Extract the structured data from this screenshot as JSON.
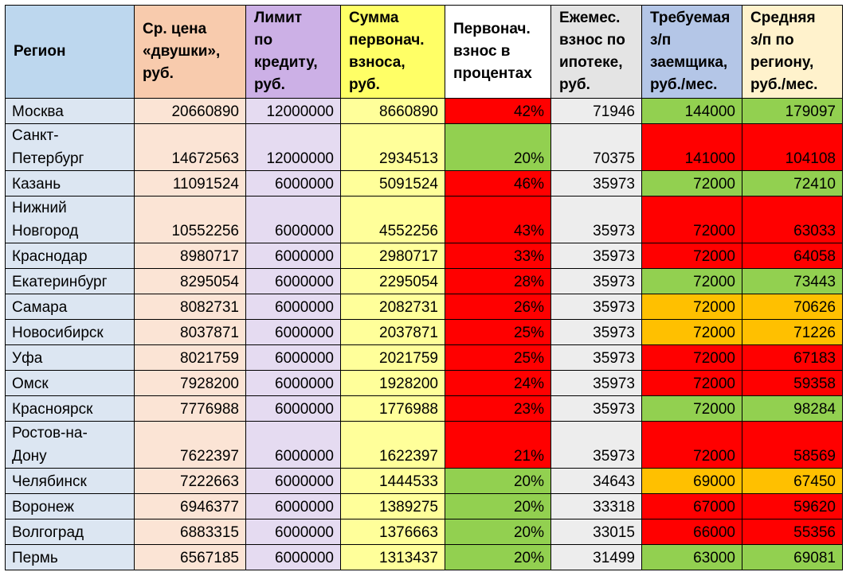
{
  "headers": {
    "region": "Регион",
    "price": "Ср. цена\n«двушки»,\nруб.",
    "limit": "Лимит\nпо\nкредиту,\nруб.",
    "sum": "Сумма\nпервонач.\nвзноса,\nруб.",
    "pct": "Первонач.\nвзнос в\nпроцентах",
    "month": "Ежемес.\nвзнос по\nипотеке,\nруб.",
    "req": "Требуемая\nз/п\nзаемщика,\nруб./мес.",
    "avg": "Средняя\nз/п по\nрегиону,\nруб./мес."
  },
  "colors": {
    "red": "#ff0000",
    "green": "#92d050",
    "orange": "#ffc000"
  },
  "rows": [
    {
      "region": "Москва",
      "price": "20660890",
      "limit": "12000000",
      "sum": "8660890",
      "pct": "42%",
      "month": "71946",
      "req": "144000",
      "avg": "179097",
      "pct_color": "red",
      "sal_color": "green"
    },
    {
      "region": "Санкт-\nПетербург",
      "price": "14672563",
      "limit": "12000000",
      "sum": "2934513",
      "pct": "20%",
      "month": "70375",
      "req": "141000",
      "avg": "104108",
      "pct_color": "green",
      "sal_color": "red"
    },
    {
      "region": "Казань",
      "price": "11091524",
      "limit": "6000000",
      "sum": "5091524",
      "pct": "46%",
      "month": "35973",
      "req": "72000",
      "avg": "72410",
      "pct_color": "red",
      "sal_color": "green"
    },
    {
      "region": "Нижний\nНовгород",
      "price": "10552256",
      "limit": "6000000",
      "sum": "4552256",
      "pct": "43%",
      "month": "35973",
      "req": "72000",
      "avg": "63033",
      "pct_color": "red",
      "sal_color": "red"
    },
    {
      "region": "Краснодар",
      "price": "8980717",
      "limit": "6000000",
      "sum": "2980717",
      "pct": "33%",
      "month": "35973",
      "req": "72000",
      "avg": "64058",
      "pct_color": "red",
      "sal_color": "red"
    },
    {
      "region": "Екатеринбург",
      "price": "8295054",
      "limit": "6000000",
      "sum": "2295054",
      "pct": "28%",
      "month": "35973",
      "req": "72000",
      "avg": "73443",
      "pct_color": "red",
      "sal_color": "green"
    },
    {
      "region": "Самара",
      "price": "8082731",
      "limit": "6000000",
      "sum": "2082731",
      "pct": "26%",
      "month": "35973",
      "req": "72000",
      "avg": "70626",
      "pct_color": "red",
      "sal_color": "orange"
    },
    {
      "region": "Новосибирск",
      "price": "8037871",
      "limit": "6000000",
      "sum": "2037871",
      "pct": "25%",
      "month": "35973",
      "req": "72000",
      "avg": "71226",
      "pct_color": "red",
      "sal_color": "orange"
    },
    {
      "region": "Уфа",
      "price": "8021759",
      "limit": "6000000",
      "sum": "2021759",
      "pct": "25%",
      "month": "35973",
      "req": "72000",
      "avg": "67183",
      "pct_color": "red",
      "sal_color": "red"
    },
    {
      "region": "Омск",
      "price": "7928200",
      "limit": "6000000",
      "sum": "1928200",
      "pct": "24%",
      "month": "35973",
      "req": "72000",
      "avg": "59358",
      "pct_color": "red",
      "sal_color": "red"
    },
    {
      "region": "Красноярск",
      "price": "7776988",
      "limit": "6000000",
      "sum": "1776988",
      "pct": "23%",
      "month": "35973",
      "req": "72000",
      "avg": "98284",
      "pct_color": "red",
      "sal_color": "green"
    },
    {
      "region": "Ростов-на-\nДону",
      "price": "7622397",
      "limit": "6000000",
      "sum": "1622397",
      "pct": "21%",
      "month": "35973",
      "req": "72000",
      "avg": "58569",
      "pct_color": "red",
      "sal_color": "red"
    },
    {
      "region": "Челябинск",
      "price": "7222663",
      "limit": "6000000",
      "sum": "1444533",
      "pct": "20%",
      "month": "34643",
      "req": "69000",
      "avg": "67450",
      "pct_color": "green",
      "sal_color": "orange"
    },
    {
      "region": "Воронеж",
      "price": "6946377",
      "limit": "6000000",
      "sum": "1389275",
      "pct": "20%",
      "month": "33318",
      "req": "67000",
      "avg": "59620",
      "pct_color": "green",
      "sal_color": "red"
    },
    {
      "region": "Волгоград",
      "price": "6883315",
      "limit": "6000000",
      "sum": "1376663",
      "pct": "20%",
      "month": "33015",
      "req": "66000",
      "avg": "55356",
      "pct_color": "green",
      "sal_color": "red"
    },
    {
      "region": "Пермь",
      "price": "6567185",
      "limit": "6000000",
      "sum": "1313437",
      "pct": "20%",
      "month": "31499",
      "req": "63000",
      "avg": "69081",
      "pct_color": "green",
      "sal_color": "green"
    }
  ]
}
